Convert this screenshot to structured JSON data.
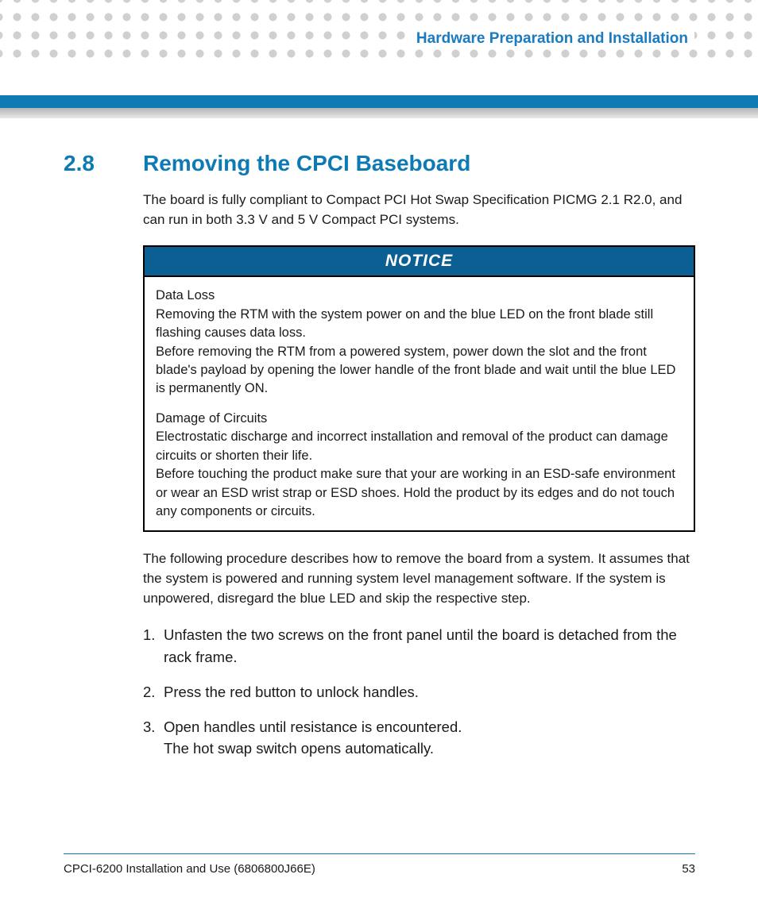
{
  "colors": {
    "accent": "#0e7ab5",
    "notice_header_bg": "#0b5f93",
    "dot": "#d0d0d0",
    "text": "#1a1a1a"
  },
  "header": {
    "chapter_title": "Hardware Preparation and Installation"
  },
  "section": {
    "number": "2.8",
    "title": "Removing the CPCI Baseboard"
  },
  "intro": "The board is fully compliant to Compact PCI Hot Swap Specification PICMG 2.1 R2.0, and can run in both 3.3 V and 5 V Compact PCI systems.",
  "notice": {
    "label": "NOTICE",
    "p1_title": "Data Loss",
    "p1_l1": "Removing the RTM with the system power on and the blue LED on the front blade still flashing causes data loss.",
    "p1_l2": "Before removing the RTM from a powered system, power down the slot and the front blade's payload by opening the lower handle of the front blade and wait until the blue LED is permanently ON.",
    "p2_title": "Damage of Circuits",
    "p2_l1": "Electrostatic discharge and incorrect installation and removal of the product can damage circuits or shorten their life.",
    "p2_l2": "Before touching the product make sure that your are working in an ESD-safe environment or wear an ESD wrist strap or ESD shoes. Hold the product by its edges and do not touch any components or circuits."
  },
  "procedure_intro": "The following procedure describes how to remove the board from a system. It assumes that the system is powered and running system level management software. If the system is unpowered, disregard the blue LED and skip the respective step.",
  "steps": {
    "s1_num": "1.",
    "s1": "Unfasten the two screws on the front panel until the board is detached from the rack frame.",
    "s2_num": "2.",
    "s2": "Press the red button to unlock handles.",
    "s3_num": "3.",
    "s3_l1": "Open handles until resistance is encountered.",
    "s3_l2": "The hot swap switch opens automatically."
  },
  "footer": {
    "doc": "CPCI-6200 Installation and Use (6806800J66E)",
    "page": "53"
  }
}
